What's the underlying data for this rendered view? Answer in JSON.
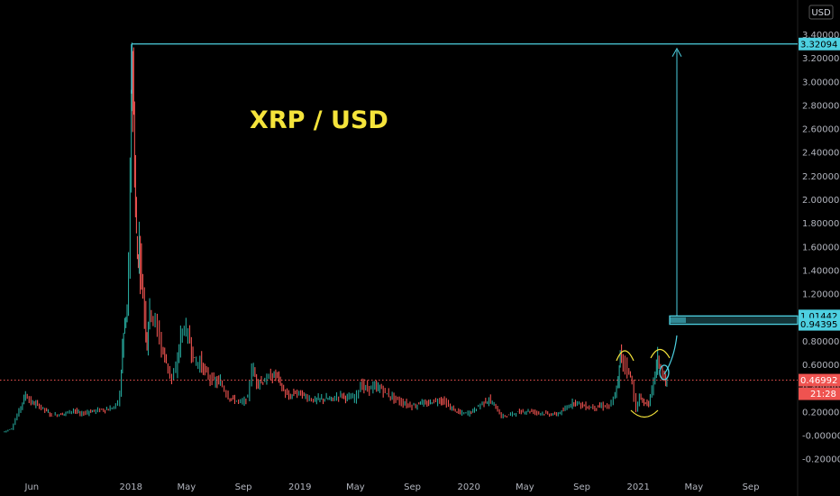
{
  "chart_data": {
    "type": "line",
    "title": "XRP / USD",
    "currency_badge": "USD",
    "y_axis_ticks": [
      "3.40000",
      "3.20000",
      "3.00000",
      "2.80000",
      "2.60000",
      "2.40000",
      "2.20000",
      "2.00000",
      "1.80000",
      "1.60000",
      "1.40000",
      "1.20000",
      "1.00000",
      "0.80000",
      "0.60000",
      "0.40000",
      "0.20000",
      "-0.00000",
      "-0.20000"
    ],
    "x_axis_ticks": [
      "Jun",
      "2018",
      "May",
      "Sep",
      "2019",
      "May",
      "Sep",
      "2020",
      "May",
      "Sep",
      "2021",
      "May",
      "Sep"
    ],
    "ylim": [
      -0.25,
      3.55
    ],
    "price_tags": {
      "ath": {
        "label": "3.32094",
        "value": 3.32094
      },
      "target_high": {
        "label": "1.01442",
        "value": 1.01442
      },
      "target_low": {
        "label": "0.94395",
        "value": 0.94395
      },
      "last": {
        "label": "0.46992",
        "value": 0.46992
      },
      "countdown": "21:28"
    },
    "series": [
      {
        "x": [
          "2017-04-01",
          "2017-04-20",
          "2017-05-10",
          "2017-05-20",
          "2017-06-01",
          "2017-06-15",
          "2017-07-01",
          "2017-07-15",
          "2017-08-01",
          "2017-08-15",
          "2017-09-01",
          "2017-09-15",
          "2017-10-01",
          "2017-10-15",
          "2017-11-01",
          "2017-11-15",
          "2017-12-01",
          "2017-12-10",
          "2017-12-15",
          "2017-12-20",
          "2017-12-25",
          "2018-01-01",
          "2018-01-04",
          "2018-01-08",
          "2018-01-12",
          "2018-01-16",
          "2018-01-20",
          "2018-01-25",
          "2018-02-01",
          "2018-02-06",
          "2018-02-12",
          "2018-02-20",
          "2018-03-01",
          "2018-03-10",
          "2018-03-20",
          "2018-04-01",
          "2018-04-10",
          "2018-04-20",
          "2018-04-28",
          "2018-05-10",
          "2018-05-20",
          "2018-06-01",
          "2018-06-15",
          "2018-07-01",
          "2018-07-15",
          "2018-08-01",
          "2018-08-15",
          "2018-09-01",
          "2018-09-12",
          "2018-09-21",
          "2018-10-01",
          "2018-10-15",
          "2018-11-01",
          "2018-11-15",
          "2018-11-25",
          "2018-12-10",
          "2018-12-24",
          "2019-01-01",
          "2019-01-15",
          "2019-02-01",
          "2019-02-15",
          "2019-03-01",
          "2019-03-15",
          "2019-04-01",
          "2019-04-15",
          "2019-05-01",
          "2019-05-14",
          "2019-05-25",
          "2019-06-10",
          "2019-06-28",
          "2019-07-10",
          "2019-07-25",
          "2019-08-10",
          "2019-08-25",
          "2019-09-10",
          "2019-09-20",
          "2019-10-01",
          "2019-10-15",
          "2019-11-01",
          "2019-11-07",
          "2019-11-20",
          "2019-12-01",
          "2019-12-15",
          "2020-01-01",
          "2020-01-15",
          "2020-02-01",
          "2020-02-15",
          "2020-03-01",
          "2020-03-13",
          "2020-03-25",
          "2020-04-10",
          "2020-04-25",
          "2020-05-10",
          "2020-05-25",
          "2020-06-10",
          "2020-06-25",
          "2020-07-10",
          "2020-07-25",
          "2020-08-10",
          "2020-08-20",
          "2020-09-01",
          "2020-09-15",
          "2020-10-01",
          "2020-10-15",
          "2020-11-01",
          "2020-11-10",
          "2020-11-20",
          "2020-11-24",
          "2020-12-01",
          "2020-12-10",
          "2020-12-20",
          "2020-12-29",
          "2021-01-05",
          "2021-01-15",
          "2021-01-25",
          "2021-02-01",
          "2021-02-08",
          "2021-02-13",
          "2021-02-20",
          "2021-02-28",
          "2021-03-05"
        ],
        "y": [
          0.03,
          0.06,
          0.25,
          0.35,
          0.28,
          0.26,
          0.22,
          0.17,
          0.18,
          0.19,
          0.22,
          0.18,
          0.2,
          0.21,
          0.22,
          0.22,
          0.25,
          0.35,
          0.75,
          0.95,
          1.02,
          2.1,
          3.3,
          2.7,
          1.9,
          1.5,
          1.6,
          1.35,
          1.05,
          0.78,
          1.1,
          1.0,
          0.9,
          0.75,
          0.62,
          0.48,
          0.55,
          0.85,
          0.92,
          0.8,
          0.62,
          0.62,
          0.52,
          0.46,
          0.45,
          0.33,
          0.3,
          0.28,
          0.32,
          0.58,
          0.46,
          0.46,
          0.5,
          0.52,
          0.4,
          0.32,
          0.37,
          0.36,
          0.33,
          0.3,
          0.31,
          0.31,
          0.31,
          0.35,
          0.32,
          0.32,
          0.43,
          0.4,
          0.41,
          0.4,
          0.35,
          0.32,
          0.28,
          0.26,
          0.25,
          0.29,
          0.26,
          0.29,
          0.3,
          0.3,
          0.25,
          0.22,
          0.19,
          0.19,
          0.22,
          0.28,
          0.3,
          0.24,
          0.16,
          0.17,
          0.19,
          0.2,
          0.21,
          0.2,
          0.19,
          0.18,
          0.18,
          0.21,
          0.27,
          0.29,
          0.26,
          0.24,
          0.24,
          0.25,
          0.25,
          0.3,
          0.45,
          0.7,
          0.62,
          0.58,
          0.45,
          0.22,
          0.32,
          0.28,
          0.27,
          0.38,
          0.55,
          0.65,
          0.58,
          0.46,
          0.47
        ]
      }
    ],
    "annotations": {
      "projection_arrow": "vertical arrow from target box up to ATH level",
      "pattern": "inverse head and shoulders arcs"
    }
  }
}
